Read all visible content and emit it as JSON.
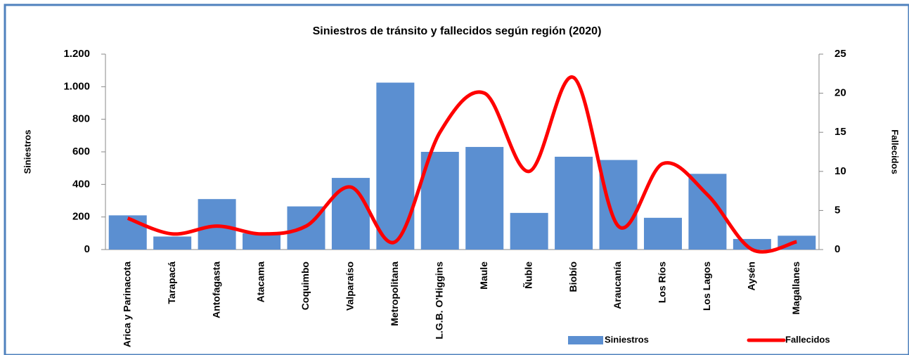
{
  "chart_data": {
    "type": "bar+line",
    "title": "Siniestros de tránsito y fallecidos según región (2020)",
    "ylabel": "Siniestros",
    "y2label": "Fallecidos",
    "categories": [
      "Arica y Parinacota",
      "Tarapacá",
      "Antofagasta",
      "Atacama",
      "Coquimbo",
      "Valparaíso",
      "Metropolitana",
      "L.G.B. O'Higgins",
      "Maule",
      "Ñuble",
      "Biobío",
      "Araucanía",
      "Los Ríos",
      "Los Lagos",
      "Aysén",
      "Magallanes"
    ],
    "series": [
      {
        "name": "Siniestros",
        "type": "bar",
        "color": "#5b8fd1",
        "axis": "y",
        "values": [
          210,
          80,
          310,
          100,
          265,
          440,
          1025,
          600,
          630,
          225,
          570,
          550,
          195,
          465,
          65,
          85
        ]
      },
      {
        "name": "Fallecidos",
        "type": "line",
        "color": "#ff0000",
        "axis": "y2",
        "values": [
          4,
          2,
          3,
          2,
          3,
          8,
          1,
          15,
          20,
          10,
          22,
          3,
          11,
          7,
          0,
          1
        ]
      }
    ],
    "ylim": [
      0,
      1200
    ],
    "yticks": [
      0,
      200,
      400,
      600,
      800,
      {
        "value": 1000,
        "label": "1.000"
      },
      {
        "value": 1200,
        "label": "1.200"
      }
    ],
    "y2lim": [
      0,
      25
    ],
    "y2ticks": [
      0,
      5,
      10,
      15,
      20,
      25
    ],
    "legend": "bottom-right"
  }
}
